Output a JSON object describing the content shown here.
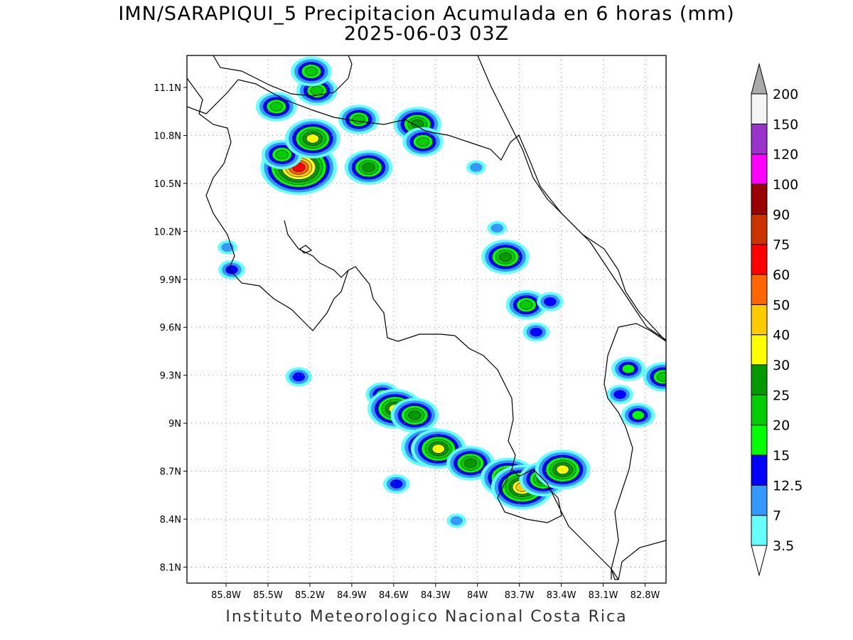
{
  "title_line1": "IMN/SARAPIQUI_5 Precipitacion Acumulada en 6 horas (mm)",
  "title_line2": "2025-06-03 03Z",
  "footer": "Instituto Meteorologico Nacional Costa Rica",
  "map": {
    "lon_range": [
      -86.08,
      -82.65
    ],
    "lat_range": [
      8.0,
      11.3
    ],
    "lon_ticks": [
      {
        "value": -85.8,
        "label": "85.8W"
      },
      {
        "value": -85.5,
        "label": "85.5W"
      },
      {
        "value": -85.2,
        "label": "85.2W"
      },
      {
        "value": -84.9,
        "label": "84.9W"
      },
      {
        "value": -84.6,
        "label": "84.6W"
      },
      {
        "value": -84.3,
        "label": "84.3W"
      },
      {
        "value": -84.0,
        "label": "84W"
      },
      {
        "value": -83.7,
        "label": "83.7W"
      },
      {
        "value": -83.4,
        "label": "83.4W"
      },
      {
        "value": -83.1,
        "label": "83.1W"
      },
      {
        "value": -82.8,
        "label": "82.8W"
      }
    ],
    "lat_ticks": [
      {
        "value": 11.1,
        "label": "11.1N"
      },
      {
        "value": 10.8,
        "label": "10.8N"
      },
      {
        "value": 10.5,
        "label": "10.5N"
      },
      {
        "value": 10.2,
        "label": "10.2N"
      },
      {
        "value": 9.9,
        "label": "9.9N"
      },
      {
        "value": 9.6,
        "label": "9.6N"
      },
      {
        "value": 9.3,
        "label": "9.3N"
      },
      {
        "value": 9.0,
        "label": "9N"
      },
      {
        "value": 8.7,
        "label": "8.7N"
      },
      {
        "value": 8.4,
        "label": "8.4N"
      },
      {
        "value": 8.1,
        "label": "8.1N"
      }
    ],
    "grid": "dotted"
  },
  "colorbar": {
    "levels": [
      {
        "label": "3.5",
        "color": "#66ffff"
      },
      {
        "label": "7",
        "color": "#3399ff"
      },
      {
        "label": "12.5",
        "color": "#0000ff"
      },
      {
        "label": "15",
        "color": "#00ff00"
      },
      {
        "label": "20",
        "color": "#00cc00"
      },
      {
        "label": "25",
        "color": "#009900"
      },
      {
        "label": "30",
        "color": "#ffff00"
      },
      {
        "label": "40",
        "color": "#ffcc00"
      },
      {
        "label": "50",
        "color": "#ff6600"
      },
      {
        "label": "60",
        "color": "#ff0000"
      },
      {
        "label": "75",
        "color": "#cc3300"
      },
      {
        "label": "90",
        "color": "#990000"
      },
      {
        "label": "100",
        "color": "#ff00ff"
      },
      {
        "label": "120",
        "color": "#9933cc"
      },
      {
        "label": "150",
        "color": "#f5f5f5"
      },
      {
        "label": "200",
        "color": "#aaaaaa"
      }
    ]
  },
  "precip_cells": [
    {
      "lon": -85.28,
      "lat": 10.6,
      "level": 9
    },
    {
      "lon": -85.4,
      "lat": 10.68,
      "level": 4
    },
    {
      "lon": -85.15,
      "lat": 11.08,
      "level": 4
    },
    {
      "lon": -85.19,
      "lat": 11.2,
      "level": 4
    },
    {
      "lon": -85.44,
      "lat": 10.98,
      "level": 4
    },
    {
      "lon": -85.18,
      "lat": 10.78,
      "level": 6
    },
    {
      "lon": -84.85,
      "lat": 10.9,
      "level": 4
    },
    {
      "lon": -84.78,
      "lat": 10.6,
      "level": 5
    },
    {
      "lon": -84.43,
      "lat": 10.87,
      "level": 5
    },
    {
      "lon": -84.39,
      "lat": 10.76,
      "level": 4
    },
    {
      "lon": -84.01,
      "lat": 10.6,
      "level": 1
    },
    {
      "lon": -83.8,
      "lat": 10.04,
      "level": 5
    },
    {
      "lon": -83.86,
      "lat": 10.22,
      "level": 1
    },
    {
      "lon": -83.65,
      "lat": 9.74,
      "level": 4
    },
    {
      "lon": -83.48,
      "lat": 9.76,
      "level": 2
    },
    {
      "lon": -83.58,
      "lat": 9.57,
      "level": 2
    },
    {
      "lon": -85.79,
      "lat": 10.1,
      "level": 1
    },
    {
      "lon": -85.76,
      "lat": 9.96,
      "level": 2
    },
    {
      "lon": -84.68,
      "lat": 9.18,
      "level": 3
    },
    {
      "lon": -84.59,
      "lat": 9.09,
      "level": 6
    },
    {
      "lon": -84.45,
      "lat": 9.05,
      "level": 5
    },
    {
      "lon": -84.35,
      "lat": 8.85,
      "level": 6
    },
    {
      "lon": -84.28,
      "lat": 8.84,
      "level": 6
    },
    {
      "lon": -84.05,
      "lat": 8.75,
      "level": 5
    },
    {
      "lon": -83.78,
      "lat": 8.66,
      "level": 6
    },
    {
      "lon": -83.68,
      "lat": 8.6,
      "level": 7
    },
    {
      "lon": -83.53,
      "lat": 8.65,
      "level": 5
    },
    {
      "lon": -83.39,
      "lat": 8.71,
      "level": 6
    },
    {
      "lon": -82.98,
      "lat": 9.18,
      "level": 2
    },
    {
      "lon": -82.92,
      "lat": 9.34,
      "level": 3
    },
    {
      "lon": -82.85,
      "lat": 9.05,
      "level": 3
    },
    {
      "lon": -82.67,
      "lat": 9.29,
      "level": 4
    },
    {
      "lon": -84.58,
      "lat": 8.62,
      "level": 2
    },
    {
      "lon": -84.15,
      "lat": 8.39,
      "level": 1
    },
    {
      "lon": -85.28,
      "lat": 9.29,
      "level": 2
    }
  ]
}
